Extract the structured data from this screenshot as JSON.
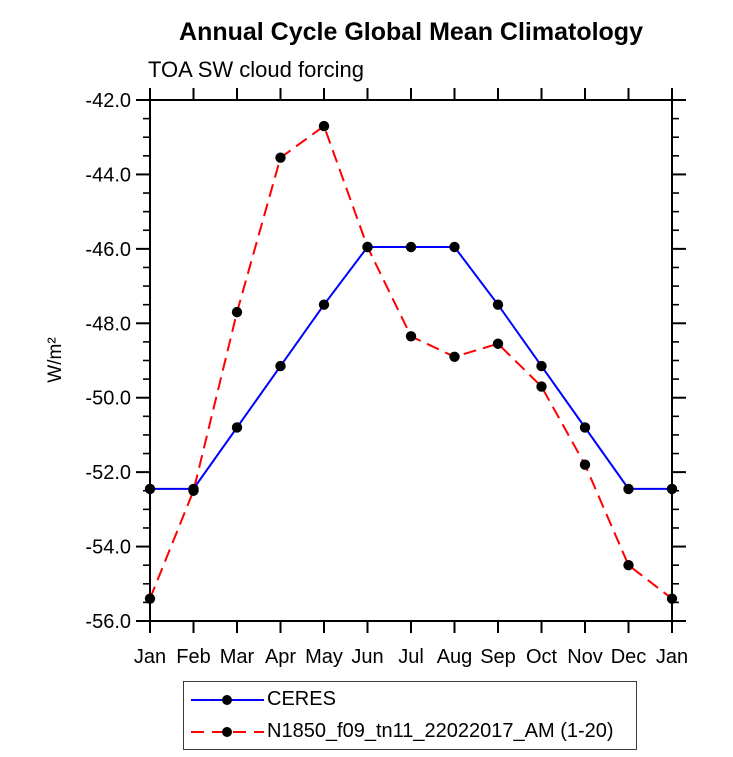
{
  "chart_data": {
    "type": "line",
    "title": "Annual Cycle Global Mean Climatology",
    "subtitle": "TOA SW cloud forcing",
    "ylabel": "W/m²",
    "categories": [
      "Jan",
      "Feb",
      "Mar",
      "Apr",
      "May",
      "Jun",
      "Jul",
      "Aug",
      "Sep",
      "Oct",
      "Nov",
      "Dec",
      "Jan"
    ],
    "ylim": [
      -56.0,
      -42.0
    ],
    "ytick_interval": 2.0,
    "yminor_interval": 0.5,
    "ytick_labels": [
      "-42.0",
      "-44.0",
      "-46.0",
      "-48.0",
      "-50.0",
      "-52.0",
      "-54.0",
      "-56.0"
    ],
    "grid": false,
    "legend_position": "bottom",
    "axis_color": "#000000",
    "series": [
      {
        "name": "CERES",
        "color": "#0000ff",
        "line_style": "solid",
        "marker": "filled-circle",
        "marker_color": "#000000",
        "values": [
          -52.45,
          -52.45,
          -50.8,
          -49.15,
          -47.5,
          -45.95,
          -45.95,
          -45.95,
          -47.5,
          -49.15,
          -50.8,
          -52.45,
          -52.45
        ]
      },
      {
        "name": "N1850_f09_tn11_22022017_AM (1-20)",
        "color": "#ff0000",
        "line_style": "dashed",
        "marker": "filled-circle",
        "marker_color": "#000000",
        "values": [
          -55.4,
          -52.5,
          -47.7,
          -43.55,
          -42.7,
          -45.95,
          -48.35,
          -48.9,
          -48.55,
          -49.7,
          -51.8,
          -54.5,
          -55.4
        ]
      }
    ]
  }
}
